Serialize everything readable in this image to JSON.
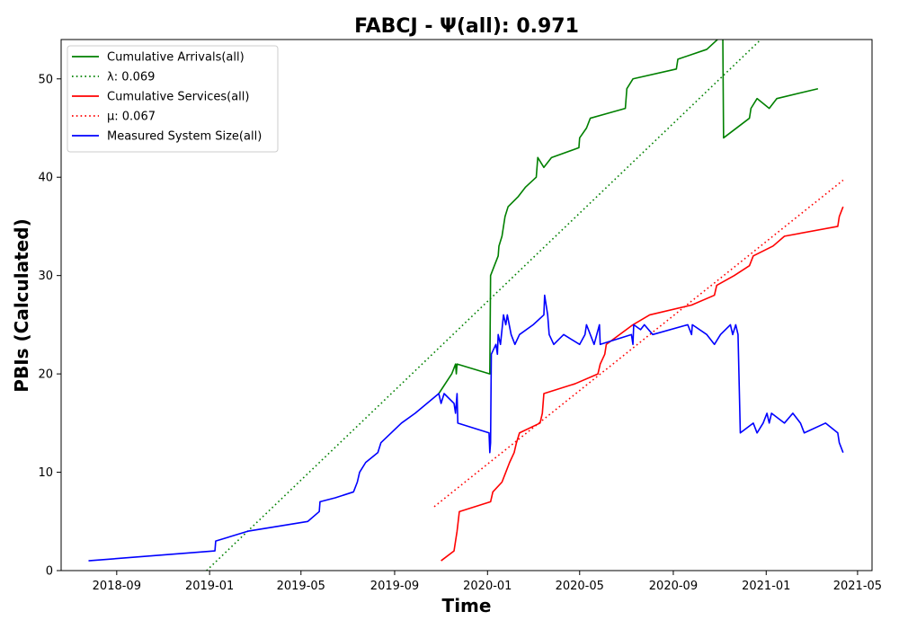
{
  "chart_data": {
    "type": "line",
    "title": "FABCJ -  Ψ(all): 0.971",
    "xlabel": "Time",
    "ylabel": "PBIs (Calculated)",
    "xlim": [
      "2018-06-20",
      "2021-05-20"
    ],
    "ylim": [
      0,
      54
    ],
    "x_ticks": [
      "2018-09",
      "2019-01",
      "2019-05",
      "2019-09",
      "2020-01",
      "2020-05",
      "2020-09",
      "2021-01",
      "2021-05"
    ],
    "y_ticks": [
      0,
      10,
      20,
      30,
      40,
      50
    ],
    "grid": false,
    "legend_position": "upper-left",
    "series": [
      {
        "name": "Cumulative Arrivals(all)",
        "style": "solid",
        "color": "#008000",
        "points": [
          [
            "2019-10-29",
            18
          ],
          [
            "2019-11-15",
            20
          ],
          [
            "2019-11-20",
            21
          ],
          [
            "2019-11-21",
            20
          ],
          [
            "2019-11-22",
            21
          ],
          [
            "2020-01-04",
            20
          ],
          [
            "2020-01-05",
            30
          ],
          [
            "2020-01-10",
            31
          ],
          [
            "2020-01-15",
            32
          ],
          [
            "2020-01-16",
            33
          ],
          [
            "2020-01-20",
            34
          ],
          [
            "2020-01-24",
            36
          ],
          [
            "2020-01-28",
            37
          ],
          [
            "2020-02-10",
            38
          ],
          [
            "2020-02-20",
            39
          ],
          [
            "2020-03-05",
            40
          ],
          [
            "2020-03-07",
            42
          ],
          [
            "2020-03-15",
            41
          ],
          [
            "2020-03-25",
            42
          ],
          [
            "2020-04-30",
            43
          ],
          [
            "2020-05-01",
            44
          ],
          [
            "2020-05-10",
            45
          ],
          [
            "2020-05-15",
            46
          ],
          [
            "2020-06-30",
            47
          ],
          [
            "2020-07-02",
            49
          ],
          [
            "2020-07-10",
            50
          ],
          [
            "2020-09-05",
            51
          ],
          [
            "2020-09-07",
            52
          ],
          [
            "2020-10-15",
            53
          ],
          [
            "2020-11-05",
            54.5
          ],
          [
            "2020-11-06",
            44
          ],
          [
            "2020-12-10",
            46
          ],
          [
            "2020-12-12",
            47
          ],
          [
            "2020-12-20",
            48
          ],
          [
            "2021-01-05",
            47
          ],
          [
            "2021-01-15",
            48
          ],
          [
            "2021-03-10",
            49
          ]
        ]
      },
      {
        "name": "λ: 0.069",
        "style": "dotted",
        "color": "#008000",
        "points": [
          [
            "2018-12-28",
            0
          ],
          [
            "2020-12-25",
            54
          ]
        ]
      },
      {
        "name": "Cumulative Services(all)",
        "style": "solid",
        "color": "#ff0000",
        "points": [
          [
            "2019-11-01",
            1
          ],
          [
            "2019-11-18",
            2
          ],
          [
            "2019-11-20",
            3
          ],
          [
            "2019-11-22",
            4
          ],
          [
            "2019-11-25",
            6
          ],
          [
            "2020-01-05",
            7
          ],
          [
            "2020-01-08",
            8
          ],
          [
            "2020-01-20",
            9
          ],
          [
            "2020-01-25",
            10
          ],
          [
            "2020-01-30",
            11
          ],
          [
            "2020-02-05",
            12
          ],
          [
            "2020-02-08",
            13
          ],
          [
            "2020-02-12",
            14
          ],
          [
            "2020-03-10",
            15
          ],
          [
            "2020-03-13",
            16
          ],
          [
            "2020-03-15",
            18
          ],
          [
            "2020-04-25",
            19
          ],
          [
            "2020-05-25",
            20
          ],
          [
            "2020-05-28",
            21
          ],
          [
            "2020-06-03",
            22
          ],
          [
            "2020-06-05",
            23
          ],
          [
            "2020-07-10",
            25
          ],
          [
            "2020-08-01",
            26
          ],
          [
            "2020-09-25",
            27
          ],
          [
            "2020-10-25",
            28
          ],
          [
            "2020-10-28",
            29
          ],
          [
            "2020-11-20",
            30
          ],
          [
            "2020-12-10",
            31
          ],
          [
            "2020-12-15",
            32
          ],
          [
            "2021-01-10",
            33
          ],
          [
            "2021-01-25",
            34
          ],
          [
            "2021-04-05",
            35
          ],
          [
            "2021-04-07",
            36
          ],
          [
            "2021-04-12",
            37
          ]
        ]
      },
      {
        "name": "μ: 0.067",
        "style": "dotted",
        "color": "#ff0000",
        "points": [
          [
            "2019-10-23",
            6.5
          ],
          [
            "2021-04-12",
            39.7
          ]
        ]
      },
      {
        "name": "Measured System Size(all)",
        "style": "solid",
        "color": "#0000ff",
        "points": [
          [
            "2018-07-26",
            1
          ],
          [
            "2019-01-08",
            2
          ],
          [
            "2019-01-09",
            3
          ],
          [
            "2019-02-20",
            4
          ],
          [
            "2019-05-10",
            5
          ],
          [
            "2019-05-25",
            6
          ],
          [
            "2019-05-26",
            7
          ],
          [
            "2019-06-15",
            7.4
          ],
          [
            "2019-07-09",
            8
          ],
          [
            "2019-07-14",
            9
          ],
          [
            "2019-07-17",
            10
          ],
          [
            "2019-07-25",
            11
          ],
          [
            "2019-08-10",
            12
          ],
          [
            "2019-08-14",
            13
          ],
          [
            "2019-09-10",
            15
          ],
          [
            "2019-09-28",
            16
          ],
          [
            "2019-10-29",
            18
          ],
          [
            "2019-11-01",
            17
          ],
          [
            "2019-11-05",
            18
          ],
          [
            "2019-11-18",
            17
          ],
          [
            "2019-11-20",
            16
          ],
          [
            "2019-11-22",
            18
          ],
          [
            "2019-11-23",
            15
          ],
          [
            "2020-01-03",
            14
          ],
          [
            "2020-01-04",
            12
          ],
          [
            "2020-01-05",
            13
          ],
          [
            "2020-01-06",
            22
          ],
          [
            "2020-01-12",
            23
          ],
          [
            "2020-01-14",
            22
          ],
          [
            "2020-01-15",
            24
          ],
          [
            "2020-01-18",
            23
          ],
          [
            "2020-01-22",
            26
          ],
          [
            "2020-01-25",
            25
          ],
          [
            "2020-01-27",
            26
          ],
          [
            "2020-02-01",
            24
          ],
          [
            "2020-02-06",
            23
          ],
          [
            "2020-02-12",
            24
          ],
          [
            "2020-03-01",
            25
          ],
          [
            "2020-03-15",
            26
          ],
          [
            "2020-03-16",
            28
          ],
          [
            "2020-03-20",
            26
          ],
          [
            "2020-03-22",
            24
          ],
          [
            "2020-03-28",
            23
          ],
          [
            "2020-04-10",
            24
          ],
          [
            "2020-05-01",
            23
          ],
          [
            "2020-05-08",
            24
          ],
          [
            "2020-05-10",
            25
          ],
          [
            "2020-05-15",
            24
          ],
          [
            "2020-05-20",
            23
          ],
          [
            "2020-05-27",
            25
          ],
          [
            "2020-05-28",
            23
          ],
          [
            "2020-07-08",
            24
          ],
          [
            "2020-07-10",
            23
          ],
          [
            "2020-07-11",
            25
          ],
          [
            "2020-07-20",
            24.5
          ],
          [
            "2020-07-25",
            25
          ],
          [
            "2020-08-05",
            24
          ],
          [
            "2020-09-20",
            25
          ],
          [
            "2020-09-25",
            24
          ],
          [
            "2020-09-26",
            25
          ],
          [
            "2020-10-15",
            24
          ],
          [
            "2020-10-25",
            23
          ],
          [
            "2020-11-02",
            24
          ],
          [
            "2020-11-15",
            25
          ],
          [
            "2020-11-18",
            24
          ],
          [
            "2020-11-22",
            25
          ],
          [
            "2020-11-25",
            24
          ],
          [
            "2020-11-28",
            14
          ],
          [
            "2020-12-15",
            15
          ],
          [
            "2020-12-20",
            14
          ],
          [
            "2020-12-28",
            15
          ],
          [
            "2021-01-02",
            16
          ],
          [
            "2021-01-05",
            15
          ],
          [
            "2021-01-08",
            16
          ],
          [
            "2021-01-25",
            15
          ],
          [
            "2021-02-05",
            16
          ],
          [
            "2021-02-15",
            15
          ],
          [
            "2021-02-20",
            14
          ],
          [
            "2021-03-20",
            15
          ],
          [
            "2021-04-05",
            14
          ],
          [
            "2021-04-07",
            13
          ],
          [
            "2021-04-12",
            12
          ]
        ]
      }
    ]
  }
}
